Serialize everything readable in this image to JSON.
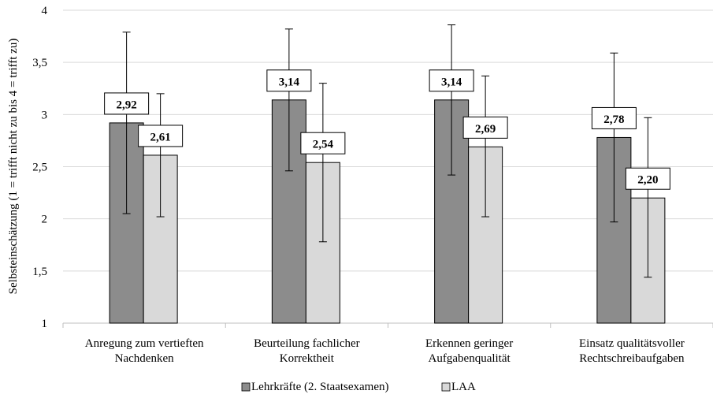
{
  "chart_data": {
    "type": "bar",
    "ylabel": "Selbsteinschätzung (1 = trifft nicht zu bis 4 = trifft zu)",
    "ylim": [
      1,
      4
    ],
    "yticks": [
      "1",
      "1,5",
      "2",
      "2,5",
      "3",
      "3,5",
      "4"
    ],
    "grid": true,
    "legend_position": "bottom",
    "categories": [
      [
        "Anregung zum vertieften",
        "Nachdenken"
      ],
      [
        "Beurteilung fachlicher",
        "Korrektheit"
      ],
      [
        "Erkennen geringer",
        "Aufgabenqualität"
      ],
      [
        "Einsatz qualitätsvoller",
        "Rechtschreibaufgaben"
      ]
    ],
    "series": [
      {
        "name": "Lehrkräfte (2. Staatsexamen)",
        "color": "#8c8c8c",
        "values": [
          2.92,
          3.14,
          3.14,
          2.78
        ],
        "labels": [
          "2,92",
          "3,14",
          "3,14",
          "2,78"
        ],
        "error_low": [
          2.05,
          2.46,
          2.42,
          1.97
        ],
        "error_high": [
          3.79,
          3.82,
          3.86,
          3.59
        ]
      },
      {
        "name": "LAA",
        "color": "#d9d9d9",
        "values": [
          2.61,
          2.54,
          2.69,
          2.2
        ],
        "labels": [
          "2,61",
          "2,54",
          "2,69",
          "2,20"
        ],
        "error_low": [
          2.02,
          1.78,
          2.02,
          1.44
        ],
        "error_high": [
          3.2,
          3.3,
          3.37,
          2.97
        ]
      }
    ]
  }
}
